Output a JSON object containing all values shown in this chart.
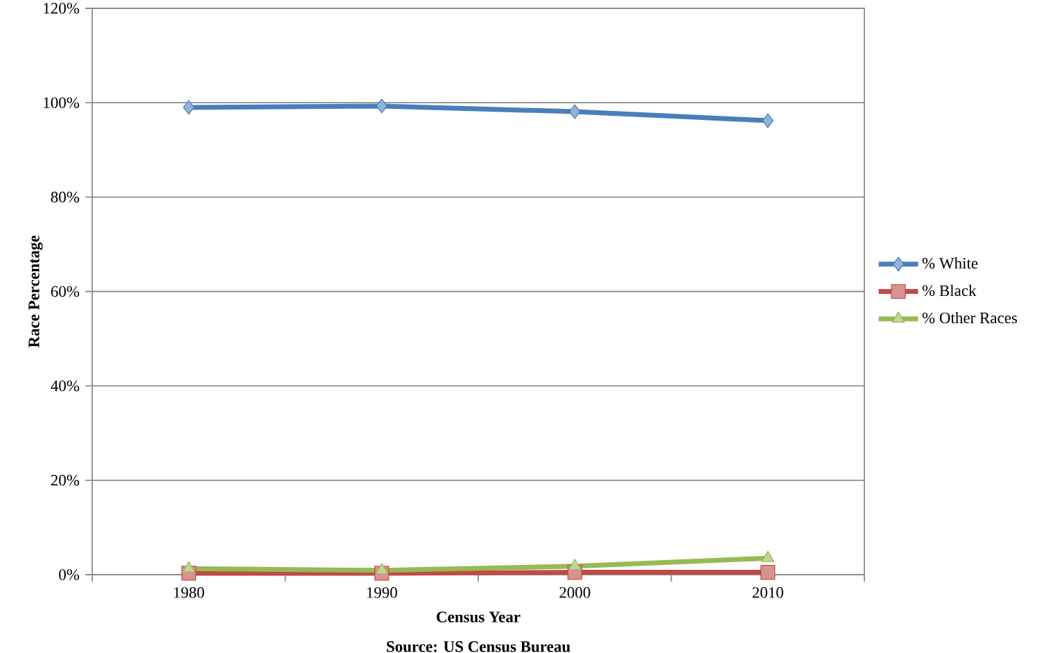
{
  "chart_data": {
    "type": "line",
    "xlabel": "Census Year",
    "ylabel": "Race Percentage",
    "annotations": [
      "Source: US Census Bureau"
    ],
    "categories": [
      "1980",
      "1990",
      "2000",
      "2010"
    ],
    "series": [
      {
        "name": "% White",
        "color": "#4a7ebb",
        "marker": "diamond",
        "values": [
          99.0,
          99.3,
          98.1,
          96.2
        ]
      },
      {
        "name": "% Black",
        "color": "#be4b48",
        "marker": "square",
        "values": [
          0.3,
          0.3,
          0.5,
          0.5
        ]
      },
      {
        "name": "% Other Races",
        "color": "#98b954",
        "marker": "triangle",
        "values": [
          1.3,
          0.9,
          1.8,
          3.5
        ]
      }
    ],
    "ylim": [
      0,
      120
    ],
    "yticks": [
      {
        "value": 0,
        "label": "0%"
      },
      {
        "value": 20,
        "label": "20%"
      },
      {
        "value": 40,
        "label": "40%"
      },
      {
        "value": 60,
        "label": "60%"
      },
      {
        "value": 80,
        "label": "80%"
      },
      {
        "value": 100,
        "label": "100%"
      },
      {
        "value": 120,
        "label": "120%"
      }
    ],
    "grid": "y",
    "legend": "right",
    "line_style": "solid"
  }
}
